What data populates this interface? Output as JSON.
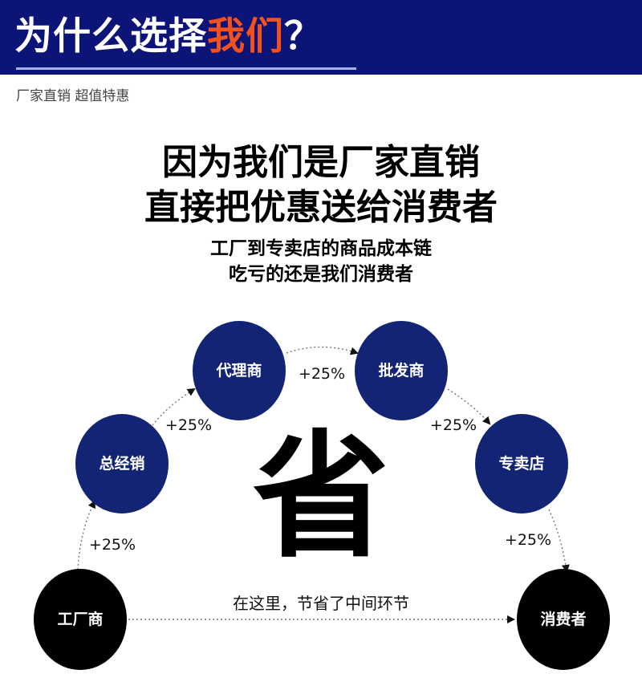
{
  "header": {
    "title_main": "为什么选择",
    "title_highlight": "我们",
    "title_suffix": "？",
    "subtitle": "厂家直销 超值特惠",
    "colors": {
      "banner": "#0c1577",
      "highlight": "#f4521c",
      "underline": "#9fb3e6"
    }
  },
  "headline": {
    "line1": "因为我们是厂家直销",
    "line2": "直接把优惠送给消费者",
    "sub1": "工厂到专卖店的商品成本链",
    "sub2": "吃亏的还是我们消费者"
  },
  "diagram": {
    "nodes": [
      {
        "label": "工厂商",
        "color": "#000000"
      },
      {
        "label": "总经销",
        "color": "#142474"
      },
      {
        "label": "代理商",
        "color": "#142474"
      },
      {
        "label": "批发商",
        "color": "#142474"
      },
      {
        "label": "专卖店",
        "color": "#142474"
      },
      {
        "label": "消费者",
        "color": "#000000"
      }
    ],
    "markups": [
      "+25%",
      "+25%",
      "+25%",
      "+25%",
      "+25%"
    ],
    "center_char": "省",
    "note": "在这里，节省了中间环节"
  }
}
